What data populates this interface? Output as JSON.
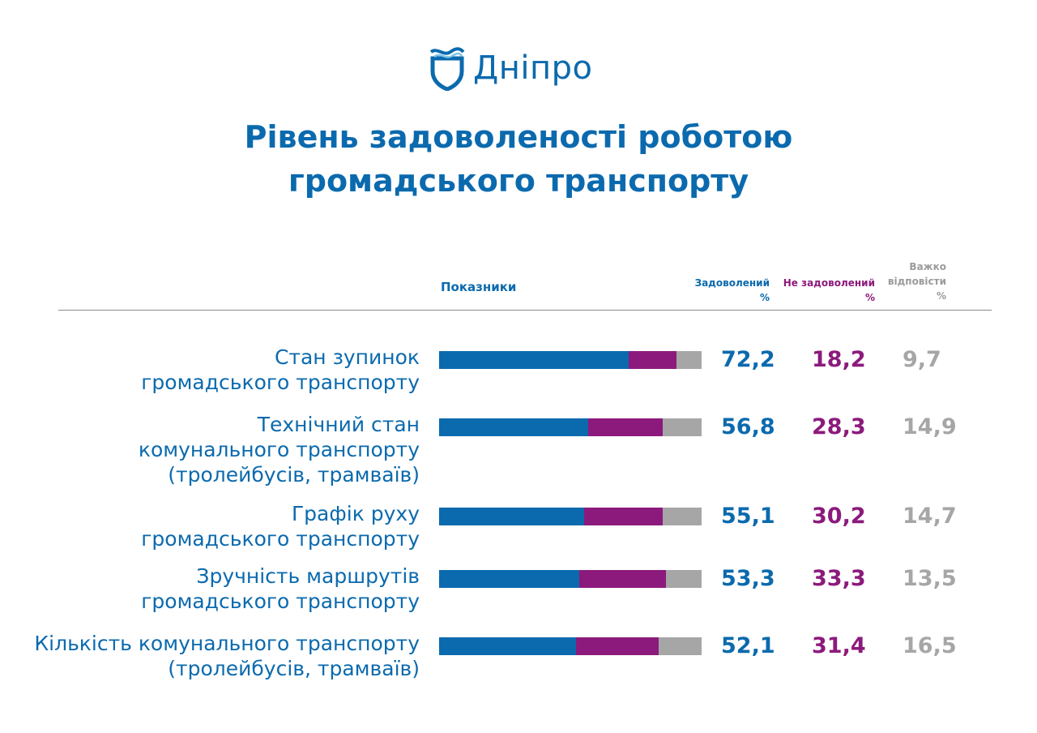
{
  "logo": {
    "text": "Дніпро",
    "icon": "shield-wave-icon"
  },
  "title": {
    "line1": "Рівень задоволеності роботою",
    "line2": "громадського транспорту"
  },
  "table_header": {
    "indicators": "Показники",
    "satisfied": "Задоволений",
    "satisfied_unit": "%",
    "unsatisfied": "Не задоволений",
    "unsatisfied_unit": "%",
    "hard_line1": "Важко",
    "hard_line2": "відповісти",
    "hard_unit": "%"
  },
  "colors": {
    "satisfied": "#0b6aae",
    "unsatisfied": "#8c1a7c",
    "hard": "#a6a6a6"
  },
  "chart_data": {
    "type": "bar",
    "stacked": true,
    "orientation": "horizontal",
    "categories": [
      [
        "Стан зупинок",
        "громадського транспорту"
      ],
      [
        "Технічний стан",
        "комунального транспорту",
        "(тролейбусів, трамваїв)"
      ],
      [
        "Графік руху",
        "громадського транспорту"
      ],
      [
        "Зручність маршрутів",
        "громадського транспорту"
      ],
      [
        "Кількість комунального транспорту",
        "(тролейбусів, трамваїв)"
      ]
    ],
    "series": [
      {
        "name": "Задоволений",
        "values": [
          72.2,
          56.8,
          55.1,
          53.3,
          52.1
        ],
        "labels": [
          "72,2",
          "56,8",
          "55,1",
          "53,3",
          "52,1"
        ]
      },
      {
        "name": "Не задоволений",
        "values": [
          18.2,
          28.3,
          30.2,
          33.3,
          31.4
        ],
        "labels": [
          "18,2",
          "28,3",
          "30,2",
          "33,3",
          "31,4"
        ]
      },
      {
        "name": "Важко відповісти",
        "values": [
          9.7,
          14.9,
          14.7,
          13.5,
          16.5
        ],
        "labels": [
          "9,7",
          "14,9",
          "14,7",
          "13,5",
          "16,5"
        ]
      }
    ]
  }
}
